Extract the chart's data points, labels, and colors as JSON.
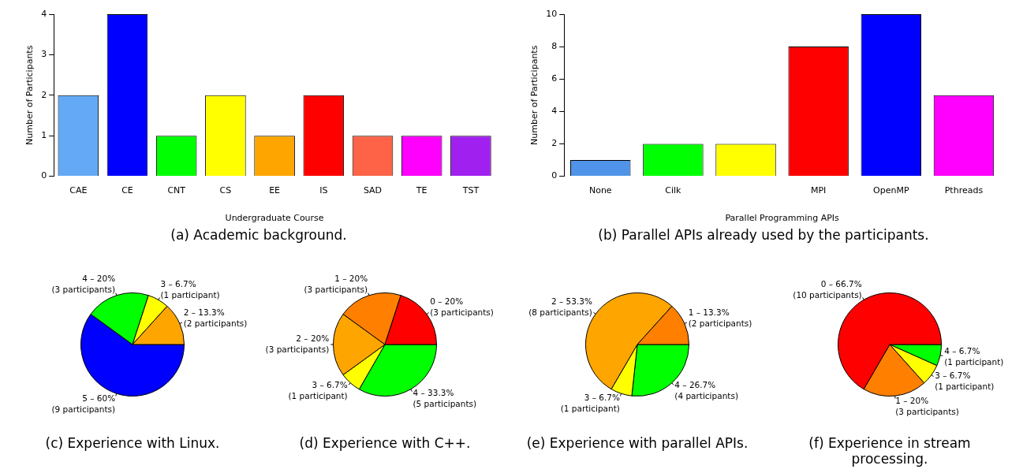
{
  "chart_data": [
    {
      "type": "bar",
      "title": "(a) Academic background.",
      "xlabel": "Undergraduate Course",
      "ylabel": "Number of Participants",
      "categories": [
        "CAE",
        "CE",
        "CNT",
        "CS",
        "EE",
        "IS",
        "SAD",
        "TE",
        "TST"
      ],
      "values": [
        2,
        4,
        1,
        2,
        1,
        2,
        1,
        1,
        1
      ],
      "colors": [
        "#63a9f5",
        "#0000ff",
        "#00ff00",
        "#ffff00",
        "#ffa500",
        "#ff0000",
        "#ff6347",
        "#ff00ff",
        "#a020f0"
      ],
      "ylim": [
        0,
        4
      ],
      "yticks": [
        0,
        1,
        2,
        3,
        4
      ],
      "grid": false,
      "legend": false
    },
    {
      "type": "bar",
      "title": "(b) Parallel APIs already used by the participants.",
      "xlabel": "Parallel Programming APIs",
      "ylabel": "Number of Participants",
      "categories": [
        "None",
        "Cilk",
        null,
        "MPI",
        "OpenMP",
        "Pthreads"
      ],
      "values": [
        1,
        2,
        2,
        8,
        10,
        5
      ],
      "colors": [
        "#4f94e8",
        "#00ff00",
        "#ffff00",
        "#ff0000",
        "#0000ff",
        "#ff00ff"
      ],
      "ylim": [
        0,
        10
      ],
      "yticks": [
        0,
        2,
        4,
        6,
        8,
        10
      ],
      "grid": false,
      "legend": false
    },
    {
      "type": "pie",
      "title": "(c) Experience with Linux.",
      "categories": [
        "5 – 60% (9 participants)",
        "4 – 20% (3 participants)",
        "3 – 6.7% (1 participant)",
        "2 – 13.3% (2 participants)"
      ],
      "values": [
        60,
        20,
        6.7,
        13.3
      ],
      "colors": [
        "#0000ff",
        "#00ff00",
        "#ffff00",
        "#ffa500"
      ],
      "legend": false
    },
    {
      "type": "pie",
      "title": "(d) Experience with C++.",
      "categories": [
        "4 – 33.3% (5 participants)",
        "3 – 6.7% (1 participant)",
        "2 – 20% (3 participants)",
        "1 – 20% (3 participants)",
        "0 – 20% (3 participants)"
      ],
      "values": [
        33.3,
        6.7,
        20,
        20,
        20
      ],
      "colors": [
        "#00ff00",
        "#ffff00",
        "#ffa500",
        "#ff7f00",
        "#ff0000"
      ],
      "legend": false
    },
    {
      "type": "pie",
      "title": "(e) Experience with parallel APIs.",
      "categories": [
        "4 – 26.7% (4 participants)",
        "3 – 6.7% (1 participant)",
        "2 – 53.3% (8 participants)",
        "1 – 13.3% (2 participants)"
      ],
      "values": [
        26.7,
        6.7,
        53.3,
        13.3
      ],
      "colors": [
        "#00ff00",
        "#ffff00",
        "#ffa500",
        "#ff7f00"
      ],
      "legend": false
    },
    {
      "type": "pie",
      "title": "(f) Experience in stream processing.",
      "categories": [
        "4 – 6.7% (1 participant)",
        "3 – 6.7% (1 participant)",
        "1 – 20% (3 participants)",
        "0 – 66.7% (10 participants)"
      ],
      "values": [
        6.7,
        6.7,
        20,
        66.7
      ],
      "colors": [
        "#00ff00",
        "#ffff00",
        "#ff7f00",
        "#ff0000"
      ],
      "legend": false
    }
  ]
}
